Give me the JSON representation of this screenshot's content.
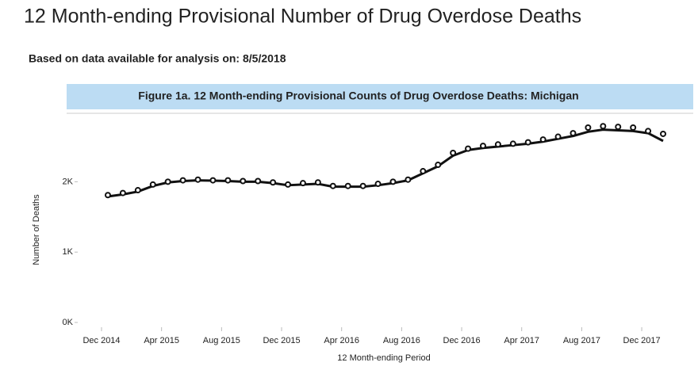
{
  "header": {
    "title": "12 Month-ending Provisional Number of Drug Overdose Deaths",
    "subtitle": "Based on data available for analysis on:  8/5/2018"
  },
  "chart_data": {
    "type": "line",
    "title": "Figure 1a. 12 Month-ending Provisional Counts of Drug Overdose Deaths: Michigan",
    "x_label": "12 Month-ending Period",
    "y_label": "Number of Deaths",
    "categories": [
      "Dec 2014",
      null,
      null,
      null,
      "Apr 2015",
      null,
      null,
      null,
      "Aug 2015",
      null,
      null,
      null,
      "Dec 2015",
      null,
      null,
      null,
      "Apr 2016",
      null,
      null,
      null,
      "Aug 2016",
      null,
      null,
      null,
      "Dec 2016",
      null,
      null,
      null,
      "Apr 2017",
      null,
      null,
      null,
      "Aug 2017",
      null,
      null,
      null,
      "Dec 2017",
      null
    ],
    "series": [
      {
        "color": "#111111",
        "style": "line",
        "values": [
          1790,
          1820,
          1860,
          1940,
          1990,
          2010,
          2020,
          2015,
          2010,
          2000,
          2000,
          1980,
          1950,
          1960,
          1970,
          1930,
          1930,
          1930,
          1950,
          1980,
          2020,
          2120,
          2220,
          2370,
          2450,
          2480,
          2500,
          2520,
          2540,
          2570,
          2610,
          2650,
          2710,
          2740,
          2730,
          2720,
          2690,
          2580
        ]
      },
      {
        "color": "#111111",
        "style": "markers",
        "values": [
          1810,
          1840,
          1880,
          1960,
          2000,
          2020,
          2030,
          2020,
          2020,
          2010,
          2010,
          1990,
          1960,
          1980,
          1990,
          1940,
          1940,
          1940,
          1970,
          2000,
          2030,
          2150,
          2240,
          2410,
          2470,
          2510,
          2530,
          2540,
          2560,
          2600,
          2640,
          2690,
          2770,
          2790,
          2780,
          2770,
          2720,
          2680
        ]
      }
    ],
    "ylim": [
      0,
      2950
    ],
    "yticks": [
      {
        "value": 0,
        "label": "0K"
      },
      {
        "value": 1000,
        "label": "1K"
      },
      {
        "value": 2000,
        "label": "2K"
      }
    ]
  }
}
